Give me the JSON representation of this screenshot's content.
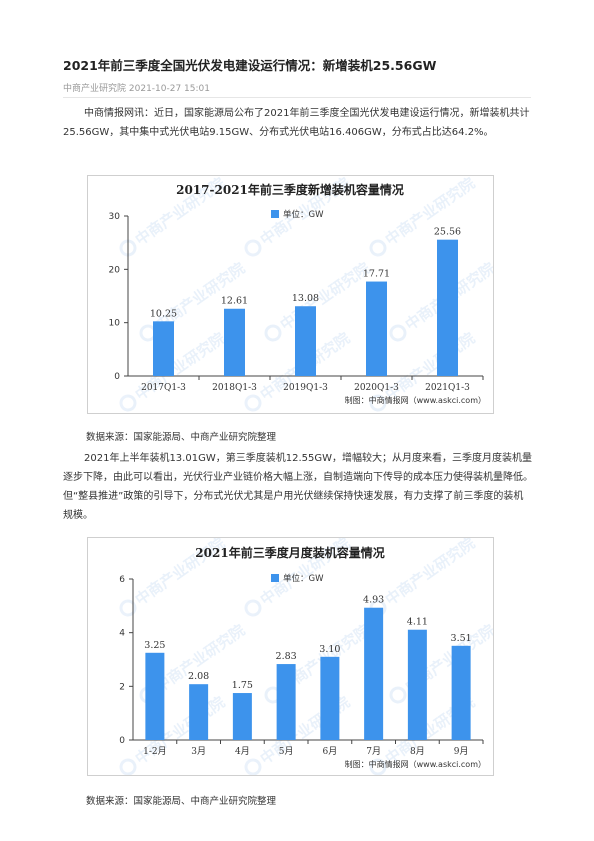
{
  "article": {
    "title": "2021年前三季度全国光伏发电建设运行情况：新增装机25.56GW",
    "source_name": "中商产业研究院",
    "date": "2021-10-27 15:01",
    "paragraph1": "中商情报网讯：近日，国家能源局公布了2021年前三季度全国光伏发电建设运行情况，新增装机共计25.56GW，其中集中式光伏电站9.15GW、分布式光伏电站16.406GW，分布式占比达64.2%。",
    "paragraph2": "2021年上半年装机13.01GW，第三季度装机12.55GW，增幅较大；从月度来看，三季度月度装机量逐步下降，由此可以看出，光伏行业产业链价格大幅上涨，自制造端向下传导的成本压力使得装机量降低。但“整县推进”政策的引导下，分布式光伏尤其是户用光伏继续保持快速发展，有力支撑了前三季度的装机规模。",
    "source_note1": "数据来源：国家能源局、中商产业研究院整理",
    "source_note2": "数据来源：国家能源局、中商产业研究院整理"
  },
  "watermark_text": "中商产业研究院",
  "chart_data": [
    {
      "type": "bar",
      "title": "2017-2021年前三季度新增装机容量情况",
      "legend": "单位：GW",
      "legend_position": "top-center",
      "categories": [
        "2017Q1-3",
        "2018Q1-3",
        "2019Q1-3",
        "2020Q1-3",
        "2021Q1-3"
      ],
      "series": [
        {
          "values": [
            10.25,
            12.61,
            13.08,
            17.71,
            25.56
          ]
        }
      ],
      "value_labels": [
        "10.25",
        "12.61",
        "13.08",
        "17.71",
        "25.56"
      ],
      "ylim": [
        0,
        30
      ],
      "yticks": [
        "0",
        "10",
        "20",
        "30"
      ],
      "grid": false,
      "bar_color": "#3d93ec",
      "credit": "制图：中商情报网（www.askci.com）"
    },
    {
      "type": "bar",
      "title": "2021年前三季度月度装机容量情况",
      "legend": "单位：GW",
      "legend_position": "top-center",
      "categories": [
        "1-2月",
        "3月",
        "4月",
        "5月",
        "6月",
        "7月",
        "8月",
        "9月"
      ],
      "series": [
        {
          "values": [
            3.25,
            2.08,
            1.75,
            2.83,
            3.1,
            4.93,
            4.11,
            3.51
          ]
        }
      ],
      "value_labels": [
        "3.25",
        "2.08",
        "1.75",
        "2.83",
        "3.10",
        "4.93",
        "4.11",
        "3.51"
      ],
      "ylim": [
        0,
        6
      ],
      "yticks": [
        "0",
        "2",
        "4",
        "6"
      ],
      "grid": false,
      "bar_color": "#3d93ec",
      "credit": "制图：中商情报网（www.askci.com）"
    }
  ]
}
